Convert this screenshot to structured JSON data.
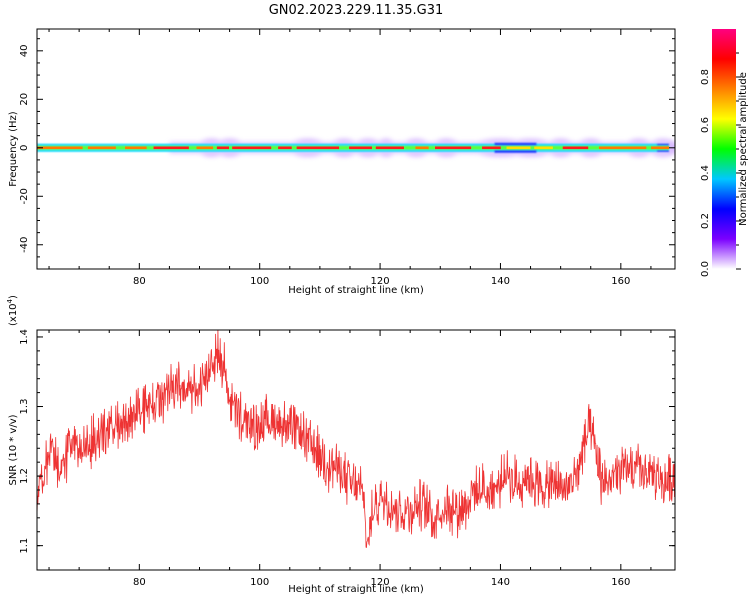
{
  "title": "GN02.2023.229.11.35.G31",
  "chart_data": [
    {
      "type": "heatmap",
      "xlabel": "Height of straight line (km)",
      "ylabel": "Frequency (Hz)",
      "xlim": [
        63,
        169
      ],
      "ylim": [
        -50,
        49
      ],
      "xticks": [
        80,
        100,
        120,
        140,
        160
      ],
      "yticks": [
        40,
        20,
        0,
        -20,
        -40
      ],
      "ytick_labels": [
        "40",
        "20",
        "0",
        "-20",
        "-40"
      ],
      "band_center_hz": 0,
      "band_halfwidth_hz": 1.5,
      "band_x_range": [
        63,
        168
      ],
      "colorbar": {
        "label": "Normalized spectral amplitude",
        "range": [
          0,
          1
        ],
        "ticks": [
          0.0,
          0.2,
          0.4,
          0.6,
          0.8
        ],
        "tick_labels": [
          "0.0",
          "0.2",
          "0.4",
          "0.6",
          "0.8"
        ],
        "colors": [
          "#ffffff",
          "#7b00ff",
          "#0000ff",
          "#00c8ff",
          "#00ff00",
          "#ffff00",
          "#ff8000",
          "#ff0000",
          "#ff0080"
        ]
      }
    },
    {
      "type": "line",
      "xlabel": "Height of straight line (km)",
      "ylabel": "SNR (10 * v/v)",
      "scale_label_prefix": "(x10",
      "scale_label_exp": "4",
      "scale_label_suffix": ")",
      "xlim": [
        63,
        169
      ],
      "ylim": [
        1.065,
        1.41
      ],
      "xticks": [
        80,
        100,
        120,
        140,
        160
      ],
      "yticks": [
        1.1,
        1.2,
        1.3,
        1.4
      ],
      "ytick_labels": [
        "1.1",
        "1.2",
        "1.3",
        "1.4"
      ],
      "series": [
        {
          "color": "#ee3333",
          "x": [
            63,
            65,
            67,
            69,
            71,
            73,
            75,
            77,
            79,
            81,
            83,
            85,
            87,
            89,
            91,
            92,
            93,
            94,
            95,
            97,
            99,
            101,
            103,
            105,
            107,
            109,
            111,
            113,
            115,
            117,
            118,
            119,
            121,
            123,
            125,
            127,
            129,
            131,
            133,
            135,
            137,
            139,
            141,
            143,
            145,
            147,
            149,
            151,
            153,
            154,
            155,
            156,
            157,
            159,
            161,
            163,
            165,
            167,
            169
          ],
          "y": [
            1.17,
            1.23,
            1.21,
            1.25,
            1.24,
            1.26,
            1.27,
            1.27,
            1.29,
            1.3,
            1.31,
            1.32,
            1.33,
            1.32,
            1.34,
            1.36,
            1.38,
            1.36,
            1.31,
            1.28,
            1.27,
            1.28,
            1.28,
            1.27,
            1.26,
            1.24,
            1.22,
            1.21,
            1.19,
            1.18,
            1.1,
            1.16,
            1.17,
            1.15,
            1.15,
            1.16,
            1.14,
            1.16,
            1.15,
            1.17,
            1.18,
            1.18,
            1.2,
            1.19,
            1.2,
            1.18,
            1.19,
            1.18,
            1.21,
            1.25,
            1.27,
            1.22,
            1.19,
            1.2,
            1.21,
            1.21,
            1.2,
            1.19,
            1.2
          ]
        }
      ]
    }
  ]
}
